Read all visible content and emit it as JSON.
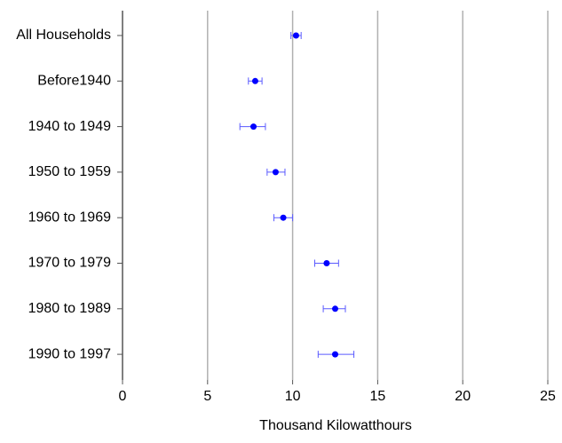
{
  "chart_data": {
    "type": "dot_errorbar",
    "xlabel": "Thousand Kilowatthours",
    "categories": [
      "All Households",
      "Before1940",
      "1940 to 1949",
      "1950 to 1959",
      "1960 to 1969",
      "1970 to 1979",
      "1980 to 1989",
      "1990 to 1997"
    ],
    "values": [
      10.2,
      7.8,
      7.7,
      9.0,
      9.45,
      12.0,
      12.5,
      12.5
    ],
    "lower": [
      9.9,
      7.4,
      6.9,
      8.5,
      8.9,
      11.3,
      11.8,
      11.5
    ],
    "upper": [
      10.5,
      8.2,
      8.4,
      9.55,
      10.0,
      12.7,
      13.1,
      13.6
    ],
    "color": "#0000ff",
    "error_color": "#5a5aff",
    "xlim": [
      0,
      25
    ],
    "xticks": [
      0,
      5,
      10,
      15,
      20,
      25
    ],
    "grid": true
  }
}
